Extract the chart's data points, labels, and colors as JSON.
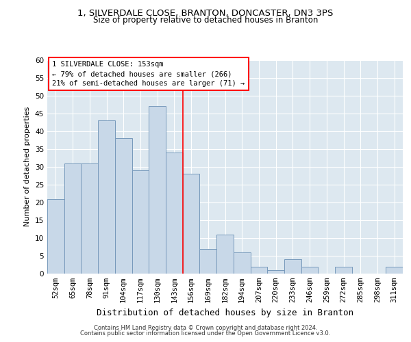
{
  "title1": "1, SILVERDALE CLOSE, BRANTON, DONCASTER, DN3 3PS",
  "title2": "Size of property relative to detached houses in Branton",
  "xlabel": "Distribution of detached houses by size in Branton",
  "ylabel": "Number of detached properties",
  "categories": [
    "52sqm",
    "65sqm",
    "78sqm",
    "91sqm",
    "104sqm",
    "117sqm",
    "130sqm",
    "143sqm",
    "156sqm",
    "169sqm",
    "182sqm",
    "194sqm",
    "207sqm",
    "220sqm",
    "233sqm",
    "246sqm",
    "259sqm",
    "272sqm",
    "285sqm",
    "298sqm",
    "311sqm"
  ],
  "values": [
    21,
    31,
    31,
    43,
    38,
    29,
    47,
    34,
    28,
    7,
    11,
    6,
    2,
    1,
    4,
    2,
    0,
    2,
    0,
    0,
    2
  ],
  "bar_color": "#c8d8e8",
  "bar_edge_color": "#7799bb",
  "bar_width": 1.0,
  "ylim": [
    0,
    60
  ],
  "yticks": [
    0,
    5,
    10,
    15,
    20,
    25,
    30,
    35,
    40,
    45,
    50,
    55,
    60
  ],
  "red_line_x": 8.0,
  "annotation_line1": "1 SILVERDALE CLOSE: 153sqm",
  "annotation_line2": "← 79% of detached houses are smaller (266)",
  "annotation_line3": "21% of semi-detached houses are larger (71) →",
  "footer1": "Contains HM Land Registry data © Crown copyright and database right 2024.",
  "footer2": "Contains public sector information licensed under the Open Government Licence v3.0.",
  "bg_color": "#dde8f0",
  "title_fontsize": 9.5,
  "subtitle_fontsize": 8.5,
  "ylabel_fontsize": 8,
  "xlabel_fontsize": 9,
  "tick_fontsize": 7.5,
  "annot_fontsize": 7.5,
  "footer_fontsize": 6
}
